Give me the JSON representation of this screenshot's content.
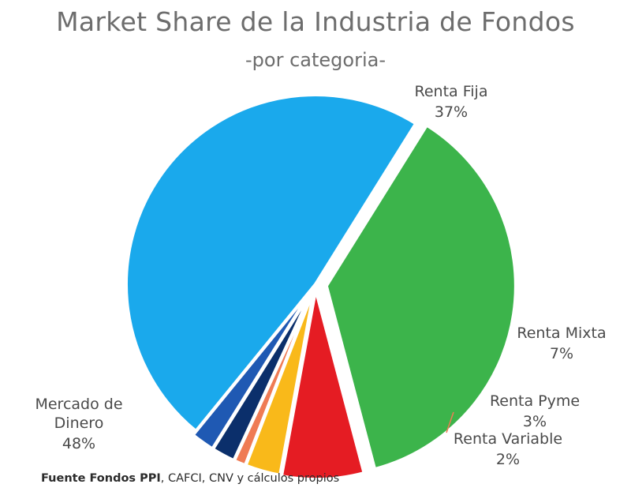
{
  "chart_data": {
    "type": "pie",
    "title": "Market Share de la Industria de Fondos",
    "subtitle": "-por categoria-",
    "slices": [
      {
        "label_lines": [
          "Renta Fija"
        ],
        "value_text": "37%",
        "value": 37,
        "color": "#3cb44b"
      },
      {
        "label_lines": [
          "Renta Mixta"
        ],
        "value_text": "7%",
        "value": 7,
        "color": "#e51c23"
      },
      {
        "label_lines": [
          "Renta Pyme"
        ],
        "value_text": "3%",
        "value": 3,
        "color": "#f9b91a"
      },
      {
        "label_lines": [
          ""
        ],
        "value_text": "",
        "value": 1,
        "color": "#ef7b54"
      },
      {
        "label_lines": [
          "Renta Variable"
        ],
        "value_text": "2%",
        "value": 2,
        "color": "#0b2f6b"
      },
      {
        "label_lines": [
          ""
        ],
        "value_text": "",
        "value": 2,
        "color": "#1f59b3"
      },
      {
        "label_lines": [
          "Mercado de",
          "Dinero"
        ],
        "value_text": "48%",
        "value": 48,
        "color": "#1aa9ec"
      }
    ]
  },
  "source": {
    "bold": "Fuente Fondos PPI",
    "rest": ", CAFCI, CNV y cálculos propios"
  }
}
